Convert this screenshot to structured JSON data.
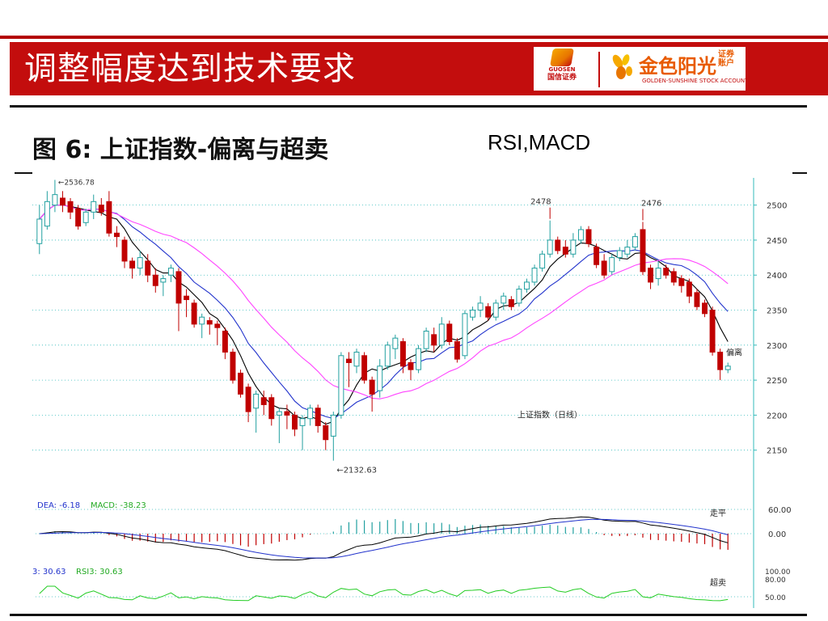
{
  "header": {
    "title": "调整幅度达到技术要求",
    "logo_guosen_en": "GUOSEN",
    "logo_guosen_cn": "国信证券",
    "logo_golden_cn": "金色阳光",
    "logo_golden_small": "证券账户",
    "logo_golden_en": "GOLDEN-SUNSHINE STOCK ACCOUNT",
    "brand_red": "#c30d0d"
  },
  "figure": {
    "title": "图 6:  上证指数-偏离与超卖",
    "aside": "RSI,MACD"
  },
  "chart_data": [
    {
      "type": "candlestick",
      "title": "上证指数（日线）",
      "ylim": [
        2100,
        2525
      ],
      "y_ticks": [
        "2500",
        "2450",
        "2400",
        "2350",
        "2300",
        "2250",
        "2200",
        "2150"
      ],
      "annotations": {
        "high_left": "2536.78",
        "low": "2132.63",
        "peak1": "2478",
        "peak2": "2476",
        "label_deviation": "偏离"
      },
      "colors": {
        "up": "#c00000",
        "down": "#22a0a0",
        "ma_short": "#000000",
        "ma_mid": "#2233cc",
        "ma_long": "#ff44ff",
        "grid": "#33bbbb"
      },
      "candles": [
        [
          2445,
          2480,
          2430,
          2500
        ],
        [
          2470,
          2505,
          2465,
          2520
        ],
        [
          2500,
          2515,
          2490,
          2536
        ],
        [
          2510,
          2500,
          2490,
          2520
        ],
        [
          2505,
          2490,
          2480,
          2510
        ],
        [
          2495,
          2470,
          2465,
          2500
        ],
        [
          2475,
          2490,
          2470,
          2495
        ],
        [
          2490,
          2505,
          2480,
          2515
        ],
        [
          2500,
          2490,
          2485,
          2510
        ],
        [
          2505,
          2460,
          2455,
          2520
        ],
        [
          2460,
          2455,
          2440,
          2470
        ],
        [
          2450,
          2420,
          2410,
          2455
        ],
        [
          2420,
          2410,
          2395,
          2425
        ],
        [
          2410,
          2425,
          2400,
          2435
        ],
        [
          2420,
          2400,
          2390,
          2430
        ],
        [
          2400,
          2385,
          2375,
          2410
        ],
        [
          2390,
          2395,
          2370,
          2400
        ],
        [
          2400,
          2410,
          2390,
          2415
        ],
        [
          2405,
          2360,
          2320,
          2410
        ],
        [
          2370,
          2365,
          2340,
          2380
        ],
        [
          2360,
          2330,
          2325,
          2365
        ],
        [
          2330,
          2340,
          2310,
          2345
        ],
        [
          2335,
          2330,
          2315,
          2340
        ],
        [
          2330,
          2325,
          2300,
          2335
        ],
        [
          2320,
          2290,
          2280,
          2325
        ],
        [
          2290,
          2250,
          2245,
          2295
        ],
        [
          2260,
          2230,
          2225,
          2265
        ],
        [
          2240,
          2205,
          2190,
          2245
        ],
        [
          2210,
          2230,
          2175,
          2235
        ],
        [
          2225,
          2215,
          2200,
          2235
        ],
        [
          2225,
          2195,
          2185,
          2230
        ],
        [
          2200,
          2205,
          2160,
          2210
        ],
        [
          2205,
          2200,
          2180,
          2215
        ],
        [
          2200,
          2180,
          2170,
          2205
        ],
        [
          2185,
          2195,
          2150,
          2200
        ],
        [
          2195,
          2210,
          2185,
          2215
        ],
        [
          2210,
          2185,
          2175,
          2215
        ],
        [
          2185,
          2165,
          2150,
          2190
        ],
        [
          2170,
          2200,
          2135,
          2205
        ],
        [
          2200,
          2285,
          2195,
          2290
        ],
        [
          2280,
          2275,
          2240,
          2290
        ],
        [
          2270,
          2290,
          2260,
          2295
        ],
        [
          2285,
          2250,
          2245,
          2290
        ],
        [
          2250,
          2230,
          2205,
          2255
        ],
        [
          2235,
          2270,
          2225,
          2280
        ],
        [
          2270,
          2300,
          2265,
          2305
        ],
        [
          2295,
          2310,
          2280,
          2315
        ],
        [
          2305,
          2270,
          2260,
          2310
        ],
        [
          2275,
          2265,
          2250,
          2280
        ],
        [
          2265,
          2295,
          2260,
          2300
        ],
        [
          2295,
          2320,
          2290,
          2325
        ],
        [
          2315,
          2300,
          2290,
          2325
        ],
        [
          2300,
          2330,
          2295,
          2340
        ],
        [
          2330,
          2305,
          2300,
          2335
        ],
        [
          2305,
          2280,
          2275,
          2310
        ],
        [
          2285,
          2345,
          2280,
          2350
        ],
        [
          2340,
          2350,
          2335,
          2355
        ],
        [
          2350,
          2360,
          2340,
          2370
        ],
        [
          2355,
          2340,
          2335,
          2360
        ],
        [
          2340,
          2360,
          2335,
          2365
        ],
        [
          2360,
          2370,
          2350,
          2375
        ],
        [
          2365,
          2355,
          2350,
          2370
        ],
        [
          2360,
          2380,
          2355,
          2385
        ],
        [
          2380,
          2390,
          2375,
          2395
        ],
        [
          2390,
          2410,
          2385,
          2415
        ],
        [
          2410,
          2430,
          2405,
          2435
        ],
        [
          2430,
          2450,
          2425,
          2478
        ],
        [
          2450,
          2435,
          2430,
          2455
        ],
        [
          2440,
          2430,
          2425,
          2450
        ],
        [
          2430,
          2450,
          2425,
          2460
        ],
        [
          2450,
          2465,
          2445,
          2470
        ],
        [
          2465,
          2445,
          2440,
          2470
        ],
        [
          2440,
          2415,
          2410,
          2445
        ],
        [
          2420,
          2400,
          2395,
          2430
        ],
        [
          2405,
          2425,
          2400,
          2430
        ],
        [
          2425,
          2435,
          2420,
          2440
        ],
        [
          2430,
          2440,
          2425,
          2450
        ],
        [
          2440,
          2455,
          2435,
          2460
        ],
        [
          2465,
          2405,
          2400,
          2476
        ],
        [
          2410,
          2390,
          2380,
          2415
        ],
        [
          2395,
          2410,
          2385,
          2420
        ],
        [
          2410,
          2400,
          2395,
          2415
        ],
        [
          2405,
          2390,
          2385,
          2410
        ],
        [
          2395,
          2385,
          2375,
          2400
        ],
        [
          2390,
          2370,
          2360,
          2395
        ],
        [
          2375,
          2355,
          2350,
          2380
        ],
        [
          2360,
          2345,
          2340,
          2365
        ],
        [
          2350,
          2290,
          2285,
          2355
        ],
        [
          2290,
          2265,
          2250,
          2295
        ],
        [
          2265,
          2270,
          2260,
          2275
        ]
      ]
    },
    {
      "type": "line",
      "title": "MACD",
      "legend": [
        "DEA: -6.18",
        "MACD: -38.23"
      ],
      "label": "走平",
      "y_ticks": [
        "60.00",
        "0.00"
      ],
      "colors": {
        "dif": "#000000",
        "dea": "#2233cc",
        "hist_up": "#22a0a0",
        "hist_down": "#c00000"
      }
    },
    {
      "type": "line",
      "title": "RSI",
      "legend": [
        "3: 30.63",
        "RSI3: 30.63"
      ],
      "label": "超卖",
      "y_ticks": [
        "100.00",
        "80.00",
        "50.00"
      ],
      "colors": {
        "rsi": "#22cc22"
      }
    }
  ]
}
